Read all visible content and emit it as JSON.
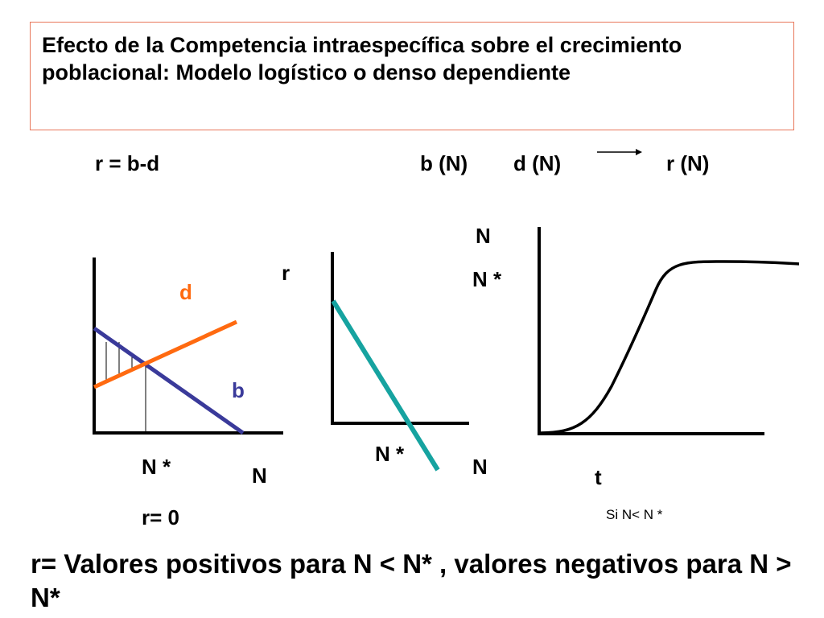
{
  "title": "Efecto de la Competencia intraespecífica sobre el crecimiento poblacional: Modelo logístico o denso dependiente",
  "equation": "r = b-d",
  "relation": {
    "b": "b (N)",
    "d": "d (N)",
    "r": "r (N)"
  },
  "graph1": {
    "line_d_label": "d",
    "line_b_label": "b",
    "x_label": "N",
    "equilibrium_label": "N *",
    "note": "r= 0",
    "colors": {
      "d": "#ff6a10",
      "b": "#3a3a9a"
    }
  },
  "graph2": {
    "y_label": "r",
    "x_label": "N",
    "equilibrium_label": "N *",
    "colors": {
      "line": "#16a3a0"
    }
  },
  "graph3": {
    "y_label": "N",
    "carrying_label": "N *",
    "x_label": "t",
    "note": "Si N< N *"
  },
  "conclusion": "r=  Valores positivos para N < N* , valores negativos para N > N*"
}
